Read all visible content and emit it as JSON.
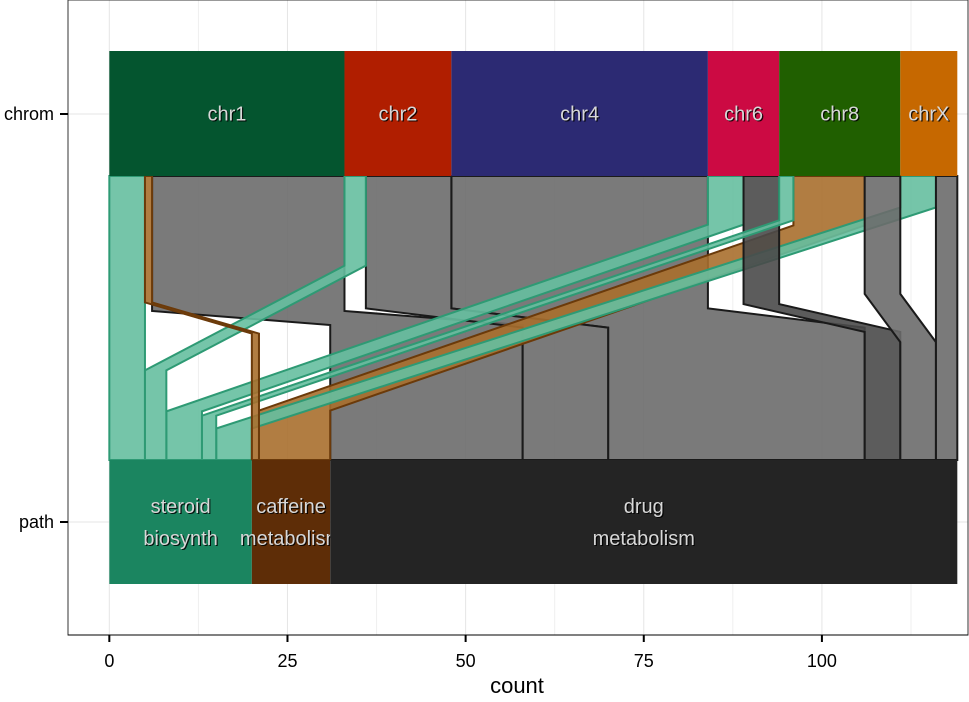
{
  "chart_data": {
    "type": "alluvial",
    "title": "",
    "xlabel": "count",
    "ylabel": "",
    "xlim": [
      -5.8,
      120.5
    ],
    "xticks": [
      0,
      25,
      50,
      75,
      100
    ],
    "grid": true,
    "axes": [
      "chrom",
      "path"
    ],
    "categories": {
      "chrom": [
        {
          "label": "chr1",
          "start": 0,
          "end": 33,
          "color": "#04552f"
        },
        {
          "label": "chr2",
          "start": 33,
          "end": 48,
          "color": "#b01e00"
        },
        {
          "label": "chr4",
          "start": 48,
          "end": 84,
          "color": "#2c2a73"
        },
        {
          "label": "chr6",
          "start": 84,
          "end": 94,
          "color": "#cc0a43"
        },
        {
          "label": "chr8",
          "start": 94,
          "end": 111,
          "color": "#205f00"
        },
        {
          "label": "chrX",
          "start": 111,
          "end": 119,
          "color": "#c66800"
        }
      ],
      "path": [
        {
          "label": "steroid\nbiosynth",
          "start": 0,
          "end": 20,
          "color": "#1b8560"
        },
        {
          "label": "caffeine\nmetabolism",
          "start": 20,
          "end": 31,
          "color": "#5e2d07"
        },
        {
          "label": "drug\nmetabolism",
          "start": 31,
          "end": 119,
          "color": "#242424"
        }
      ]
    },
    "flows": [
      {
        "chrom": "chr1",
        "path": "steroid\nbiosynth",
        "count": 5,
        "color": "#66bfa0"
      },
      {
        "chrom": "chr2",
        "path": "steroid\nbiosynth",
        "count": 3,
        "color": "#66bfa0"
      },
      {
        "chrom": "chr6",
        "path": "steroid\nbiosynth",
        "count": 5,
        "color": "#66bfa0"
      },
      {
        "chrom": "chrX",
        "path": "steroid\nbiosynth",
        "count": 5,
        "color": "#66bfa0"
      },
      {
        "chrom": "chr8",
        "path": "steroid\nbiosynth",
        "count": 2,
        "color": "#66bfa0"
      },
      {
        "chrom": "chr1",
        "path": "caffeine\nmetabolism",
        "count": 1,
        "color": "#a86f2e"
      },
      {
        "chrom": "chr8",
        "path": "caffeine\nmetabolism",
        "count": 10,
        "color": "#a86f2e"
      },
      {
        "chrom": "chr1",
        "path": "drug\nmetabolism",
        "count": 27,
        "color": "#6b6b6b"
      },
      {
        "chrom": "chr2",
        "path": "drug\nmetabolism",
        "count": 12,
        "color": "#6b6b6b"
      },
      {
        "chrom": "chr4",
        "path": "drug\nmetabolism",
        "count": 36,
        "color": "#6b6b6b"
      },
      {
        "chrom": "chr6",
        "path": "drug\nmetabolism",
        "count": 5,
        "color": "#4a4a4a"
      },
      {
        "chrom": "chr8",
        "path": "drug\nmetabolism",
        "count": 5,
        "color": "#6b6b6b"
      },
      {
        "chrom": "chrX",
        "path": "drug\nmetabolism",
        "count": 3,
        "color": "#6b6b6b"
      }
    ]
  }
}
